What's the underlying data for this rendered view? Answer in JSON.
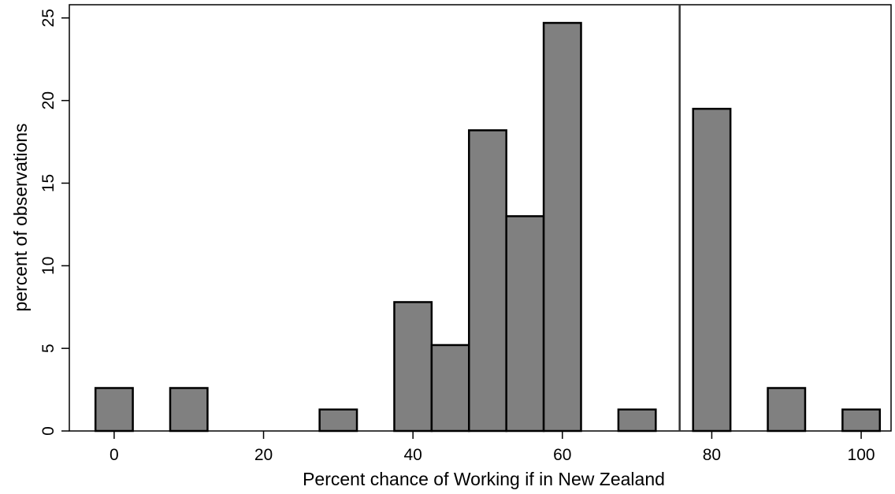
{
  "chart_data": {
    "type": "bar",
    "title": "",
    "xlabel": "Percent chance of Working if in New Zealand",
    "ylabel": "percent of observations",
    "xlim": [
      -6,
      104
    ],
    "ylim": [
      0,
      25.8
    ],
    "bin_width": 5,
    "bar_color": "#808080",
    "bar_edge_color": "#000000",
    "bars": [
      {
        "x": 0,
        "value": 2.6
      },
      {
        "x": 10,
        "value": 2.6
      },
      {
        "x": 30,
        "value": 1.3
      },
      {
        "x": 40,
        "value": 7.8
      },
      {
        "x": 45,
        "value": 5.2
      },
      {
        "x": 50,
        "value": 18.2
      },
      {
        "x": 55,
        "value": 13.0
      },
      {
        "x": 60,
        "value": 24.7
      },
      {
        "x": 70,
        "value": 1.3
      },
      {
        "x": 80,
        "value": 19.5
      },
      {
        "x": 90,
        "value": 2.6
      },
      {
        "x": 100,
        "value": 1.3
      }
    ],
    "reference_line_x": 75.7,
    "x_ticks": [
      0,
      20,
      40,
      60,
      80,
      100
    ],
    "y_ticks": [
      0,
      5,
      10,
      15,
      20,
      25
    ],
    "grid": false
  }
}
